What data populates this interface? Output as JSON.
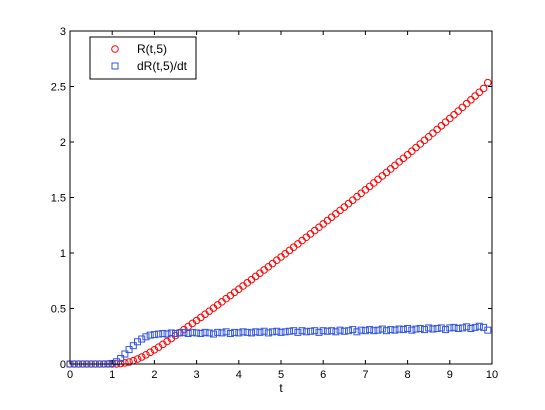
{
  "chart_data": {
    "type": "scatter",
    "xlabel": "t",
    "ylabel": "",
    "title": "",
    "xlim": [
      0,
      10
    ],
    "ylim": [
      0,
      3
    ],
    "x_ticks": [
      "0",
      "1",
      "2",
      "3",
      "4",
      "5",
      "6",
      "7",
      "8",
      "9",
      "10"
    ],
    "y_ticks": [
      "0",
      "0.5",
      "1",
      "1.5",
      "2",
      "2.5",
      "3"
    ],
    "grid": false,
    "legend_position": "top-left",
    "series": [
      {
        "name": "R(t,5)",
        "marker": "circle",
        "color": "#ff0000",
        "x": [
          0,
          0.1,
          0.2,
          0.3,
          0.4,
          0.5,
          0.6,
          0.7,
          0.8,
          0.9,
          1,
          1.1,
          1.2,
          1.3,
          1.4,
          1.5,
          1.6,
          1.7,
          1.8,
          1.9,
          2,
          2.1,
          2.2,
          2.3,
          2.4,
          2.5,
          2.6,
          2.7,
          2.8,
          2.9,
          3,
          3.1,
          3.2,
          3.3,
          3.4,
          3.5,
          3.6,
          3.7,
          3.8,
          3.9,
          4,
          4.1,
          4.2,
          4.3,
          4.4,
          4.5,
          4.6,
          4.7,
          4.8,
          4.9,
          5,
          5.1,
          5.2,
          5.3,
          5.4,
          5.5,
          5.6,
          5.7,
          5.8,
          5.9,
          6,
          6.1,
          6.2,
          6.3,
          6.4,
          6.5,
          6.6,
          6.7,
          6.8,
          6.9,
          7,
          7.1,
          7.2,
          7.3,
          7.4,
          7.5,
          7.6,
          7.7,
          7.8,
          7.9,
          8,
          8.1,
          8.2,
          8.3,
          8.4,
          8.5,
          8.6,
          8.7,
          8.8,
          8.9,
          9,
          9.1,
          9.2,
          9.3,
          9.4,
          9.5,
          9.6,
          9.7,
          9.8,
          9.9
        ],
        "y": [
          0,
          0,
          0,
          0,
          0,
          0,
          0,
          0,
          0,
          0,
          0,
          0.001,
          0.004,
          0.01,
          0.018,
          0.03,
          0.045,
          0.063,
          0.083,
          0.105,
          0.128,
          0.152,
          0.177,
          0.203,
          0.229,
          0.256,
          0.283,
          0.31,
          0.337,
          0.365,
          0.392,
          0.42,
          0.448,
          0.476,
          0.504,
          0.532,
          0.56,
          0.589,
          0.617,
          0.646,
          0.674,
          0.703,
          0.731,
          0.76,
          0.789,
          0.818,
          0.847,
          0.876,
          0.905,
          0.935,
          0.964,
          0.993,
          1.023,
          1.052,
          1.082,
          1.112,
          1.142,
          1.172,
          1.202,
          1.232,
          1.262,
          1.292,
          1.323,
          1.353,
          1.384,
          1.414,
          1.445,
          1.476,
          1.507,
          1.538,
          1.569,
          1.6,
          1.631,
          1.663,
          1.694,
          1.726,
          1.757,
          1.789,
          1.821,
          1.853,
          1.885,
          1.917,
          1.95,
          1.982,
          2.015,
          2.047,
          2.08,
          2.113,
          2.146,
          2.179,
          2.212,
          2.245,
          2.279,
          2.312,
          2.346,
          2.38,
          2.414,
          2.448,
          2.482,
          2.535
        ]
      },
      {
        "name": "dR(t,5)/dt",
        "marker": "square",
        "color": "#3355dd",
        "x": [
          0,
          0.1,
          0.2,
          0.3,
          0.4,
          0.5,
          0.6,
          0.7,
          0.8,
          0.9,
          1,
          1.1,
          1.2,
          1.3,
          1.4,
          1.5,
          1.6,
          1.7,
          1.8,
          1.9,
          2,
          2.1,
          2.2,
          2.3,
          2.4,
          2.5,
          2.6,
          2.7,
          2.8,
          2.9,
          3,
          3.1,
          3.2,
          3.3,
          3.4,
          3.5,
          3.6,
          3.7,
          3.8,
          3.9,
          4,
          4.1,
          4.2,
          4.3,
          4.4,
          4.5,
          4.6,
          4.7,
          4.8,
          4.9,
          5,
          5.1,
          5.2,
          5.3,
          5.4,
          5.5,
          5.6,
          5.7,
          5.8,
          5.9,
          6,
          6.1,
          6.2,
          6.3,
          6.4,
          6.5,
          6.6,
          6.7,
          6.8,
          6.9,
          7,
          7.1,
          7.2,
          7.3,
          7.4,
          7.5,
          7.6,
          7.7,
          7.8,
          7.9,
          8,
          8.1,
          8.2,
          8.3,
          8.4,
          8.5,
          8.6,
          8.7,
          8.8,
          8.9,
          9,
          9.1,
          9.2,
          9.3,
          9.4,
          9.5,
          9.6,
          9.7,
          9.8,
          9.9
        ],
        "y": [
          0,
          0,
          0,
          0,
          0,
          0,
          0,
          0,
          0,
          0.001,
          0.005,
          0.02,
          0.05,
          0.09,
          0.13,
          0.165,
          0.2,
          0.225,
          0.245,
          0.26,
          0.265,
          0.27,
          0.275,
          0.27,
          0.28,
          0.275,
          0.28,
          0.285,
          0.275,
          0.285,
          0.28,
          0.275,
          0.285,
          0.28,
          0.27,
          0.285,
          0.28,
          0.29,
          0.275,
          0.285,
          0.28,
          0.29,
          0.285,
          0.28,
          0.29,
          0.285,
          0.295,
          0.28,
          0.29,
          0.295,
          0.285,
          0.29,
          0.295,
          0.3,
          0.285,
          0.3,
          0.29,
          0.295,
          0.3,
          0.285,
          0.3,
          0.295,
          0.3,
          0.29,
          0.305,
          0.295,
          0.3,
          0.31,
          0.29,
          0.305,
          0.3,
          0.31,
          0.3,
          0.305,
          0.315,
          0.3,
          0.31,
          0.305,
          0.315,
          0.31,
          0.32,
          0.305,
          0.315,
          0.32,
          0.31,
          0.325,
          0.315,
          0.32,
          0.325,
          0.31,
          0.325,
          0.33,
          0.32,
          0.325,
          0.335,
          0.32,
          0.33,
          0.34,
          0.33,
          0.305
        ]
      }
    ]
  }
}
